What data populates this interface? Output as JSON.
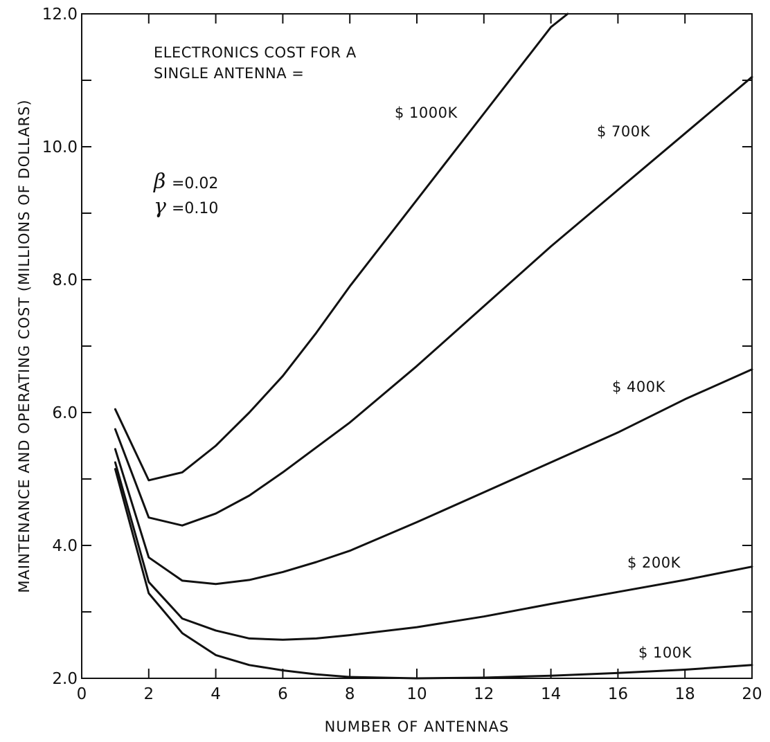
{
  "chart_data": {
    "type": "line",
    "xlabel": "NUMBER OF ANTENNAS",
    "ylabel": "MAINTENANCE AND OPERATING COST (MILLIONS OF DOLLARS)",
    "xlim": [
      0,
      20
    ],
    "ylim": [
      2.0,
      12.0
    ],
    "x_ticks": [
      0,
      2,
      4,
      6,
      8,
      10,
      12,
      14,
      16,
      18,
      20
    ],
    "x_tick_labels": [
      "0",
      "2",
      "4",
      "6",
      "8",
      "10",
      "12",
      "14",
      "16",
      "18",
      "20"
    ],
    "y_ticks": [
      2.0,
      4.0,
      6.0,
      8.0,
      10.0,
      12.0
    ],
    "y_tick_labels": [
      "2.0",
      "4.0",
      "6.0",
      "8.0",
      "10.0",
      "12.0"
    ],
    "grid": false,
    "annotation_title": [
      "ELECTRONICS COST FOR A",
      "SINGLE ANTENNA ="
    ],
    "params": [
      {
        "symbol": "β",
        "text": "=0.02"
      },
      {
        "symbol": "γ",
        "text": "=0.10"
      }
    ],
    "series": [
      {
        "name": "$1000K",
        "x": [
          1,
          2,
          3,
          4,
          5,
          6,
          7,
          8,
          10,
          12,
          14,
          14.5
        ],
        "y": [
          6.05,
          4.98,
          5.1,
          5.5,
          6.0,
          6.55,
          7.2,
          7.9,
          9.2,
          10.5,
          11.8,
          12.0
        ]
      },
      {
        "name": "$700K",
        "x": [
          1,
          2,
          3,
          4,
          5,
          6,
          8,
          10,
          12,
          14,
          16,
          18,
          20
        ],
        "y": [
          5.75,
          4.42,
          4.3,
          4.48,
          4.75,
          5.1,
          5.85,
          6.7,
          7.6,
          8.5,
          9.35,
          10.2,
          11.05
        ]
      },
      {
        "name": "$400K",
        "x": [
          1,
          2,
          3,
          4,
          5,
          6,
          7,
          8,
          10,
          12,
          14,
          16,
          18,
          20
        ],
        "y": [
          5.45,
          3.82,
          3.47,
          3.42,
          3.48,
          3.6,
          3.75,
          3.92,
          4.35,
          4.8,
          5.25,
          5.7,
          6.2,
          6.65
        ]
      },
      {
        "name": "$200K",
        "x": [
          1,
          2,
          3,
          4,
          5,
          6,
          7,
          8,
          10,
          12,
          14,
          16,
          18,
          20
        ],
        "y": [
          5.25,
          3.45,
          2.9,
          2.72,
          2.6,
          2.58,
          2.6,
          2.65,
          2.77,
          2.93,
          3.12,
          3.3,
          3.48,
          3.68
        ]
      },
      {
        "name": "$100K",
        "x": [
          1,
          2,
          3,
          4,
          5,
          6,
          7,
          8,
          10,
          12,
          14,
          16,
          18,
          20
        ],
        "y": [
          5.15,
          3.28,
          2.68,
          2.35,
          2.2,
          2.12,
          2.06,
          2.02,
          2.0,
          2.01,
          2.04,
          2.08,
          2.13,
          2.2
        ]
      }
    ]
  },
  "series_labels": [
    {
      "text": "$ 1000K",
      "series": "$1000K"
    },
    {
      "text": "$ 700K",
      "series": "$700K"
    },
    {
      "text": "$ 400K",
      "series": "$400K"
    },
    {
      "text": "$ 200K",
      "series": "$200K"
    },
    {
      "text": "$ 100K",
      "series": "$100K"
    }
  ]
}
